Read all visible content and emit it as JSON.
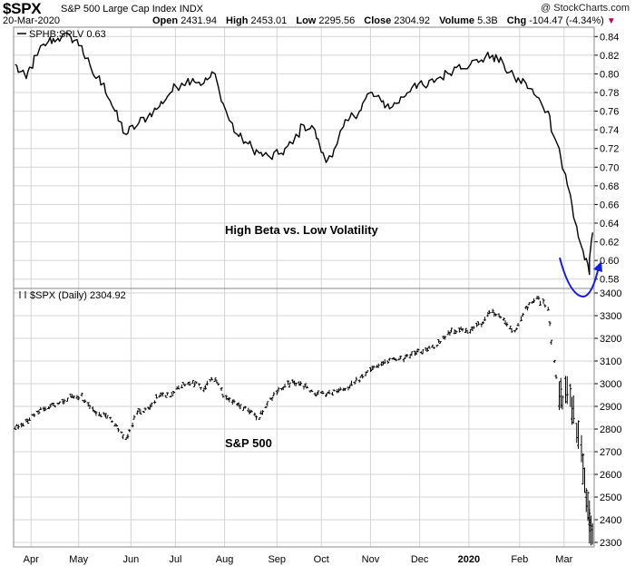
{
  "header": {
    "symbol": "$SPX",
    "name": "S&P 500 Large Cap Index",
    "exchange": "INDX",
    "date": "20-Mar-2020",
    "open_label": "Open",
    "open": "2431.94",
    "high_label": "High",
    "high": "2453.01",
    "low_label": "Low",
    "low": "2295.56",
    "close_label": "Close",
    "close": "2304.92",
    "volume_label": "Volume",
    "volume": "5.3B",
    "chg_label": "Chg",
    "chg": "-104.47 (-4.34%)",
    "chg_arrow": "▼",
    "brand": "@ StockCharts.com"
  },
  "colors": {
    "line": "#000000",
    "grid": "#d4d4d4",
    "annotation": "#1420d8",
    "down_arrow": "#c00060"
  },
  "chart_data": [
    {
      "type": "line",
      "legend": "SPHB:SPLV 0.63",
      "annotation": "High Beta vs. Low Volatility",
      "ylim": [
        0.57,
        0.85
      ],
      "yticks": [
        0.58,
        0.6,
        0.62,
        0.64,
        0.66,
        0.68,
        0.7,
        0.72,
        0.74,
        0.76,
        0.78,
        0.8,
        0.82,
        0.84
      ],
      "y_tick_labels": [
        "0.58",
        "0.60",
        "0.62",
        "0.64",
        "0.66",
        "0.68",
        "0.70",
        "0.72",
        "0.74",
        "0.76",
        "0.78",
        "0.80",
        "0.82",
        "0.84"
      ],
      "grid": true,
      "highlight": "curved arrow under the March low",
      "series": [
        {
          "x": [
            "2019-03-22",
            "2019-03-29",
            "2019-04-05",
            "2019-04-12",
            "2019-04-18",
            "2019-04-26",
            "2019-05-03",
            "2019-05-10",
            "2019-05-17",
            "2019-05-24",
            "2019-05-31",
            "2019-06-07",
            "2019-06-14",
            "2019-06-21",
            "2019-06-28",
            "2019-07-05",
            "2019-07-12",
            "2019-07-19",
            "2019-07-26",
            "2019-08-02",
            "2019-08-09",
            "2019-08-16",
            "2019-08-23",
            "2019-08-30",
            "2019-09-06",
            "2019-09-13",
            "2019-09-20",
            "2019-09-27",
            "2019-10-04",
            "2019-10-11",
            "2019-10-18",
            "2019-10-25",
            "2019-11-01",
            "2019-11-08",
            "2019-11-15",
            "2019-11-22",
            "2019-11-29",
            "2019-12-06",
            "2019-12-13",
            "2019-12-20",
            "2019-12-27",
            "2020-01-03",
            "2020-01-10",
            "2020-01-17",
            "2020-01-24",
            "2020-01-31",
            "2020-02-07",
            "2020-02-14",
            "2020-02-21",
            "2020-02-28",
            "2020-03-06",
            "2020-03-13",
            "2020-03-18",
            "2020-03-20"
          ],
          "values": [
            0.81,
            0.795,
            0.82,
            0.835,
            0.838,
            0.84,
            0.83,
            0.8,
            0.79,
            0.76,
            0.735,
            0.745,
            0.755,
            0.765,
            0.78,
            0.79,
            0.795,
            0.79,
            0.8,
            0.76,
            0.735,
            0.725,
            0.715,
            0.71,
            0.715,
            0.725,
            0.745,
            0.74,
            0.705,
            0.725,
            0.75,
            0.76,
            0.78,
            0.77,
            0.765,
            0.775,
            0.79,
            0.785,
            0.795,
            0.8,
            0.81,
            0.81,
            0.815,
            0.82,
            0.81,
            0.795,
            0.79,
            0.775,
            0.76,
            0.72,
            0.67,
            0.615,
            0.585,
            0.63
          ]
        }
      ]
    },
    {
      "type": "bar",
      "style": "OHLC",
      "legend": "$SPX (Daily) 2304.92",
      "annotation": "S&P 500",
      "ylim": [
        2280,
        3420
      ],
      "yticks": [
        2300,
        2400,
        2500,
        2600,
        2700,
        2800,
        2900,
        3000,
        3100,
        3200,
        3300,
        3400
      ],
      "y_tick_labels": [
        "2300",
        "2400",
        "2500",
        "2600",
        "2700",
        "2800",
        "2900",
        "3000",
        "3100",
        "3200",
        "3300",
        "3400"
      ],
      "grid": true,
      "series": [
        {
          "x": [
            "2019-03-22",
            "2019-03-29",
            "2019-04-05",
            "2019-04-12",
            "2019-04-18",
            "2019-04-26",
            "2019-05-03",
            "2019-05-10",
            "2019-05-17",
            "2019-05-24",
            "2019-05-31",
            "2019-06-07",
            "2019-06-14",
            "2019-06-21",
            "2019-06-28",
            "2019-07-05",
            "2019-07-12",
            "2019-07-19",
            "2019-07-26",
            "2019-08-02",
            "2019-08-09",
            "2019-08-16",
            "2019-08-23",
            "2019-08-30",
            "2019-09-06",
            "2019-09-13",
            "2019-09-20",
            "2019-09-27",
            "2019-10-04",
            "2019-10-11",
            "2019-10-18",
            "2019-10-25",
            "2019-11-01",
            "2019-11-08",
            "2019-11-15",
            "2019-11-22",
            "2019-11-29",
            "2019-12-06",
            "2019-12-13",
            "2019-12-20",
            "2019-12-27",
            "2020-01-03",
            "2020-01-10",
            "2020-01-17",
            "2020-01-24",
            "2020-01-31",
            "2020-02-07",
            "2020-02-14",
            "2020-02-21",
            "2020-02-28",
            "2020-03-06",
            "2020-03-13",
            "2020-03-18",
            "2020-03-20"
          ],
          "values": [
            2810,
            2830,
            2870,
            2900,
            2905,
            2940,
            2945,
            2880,
            2860,
            2825,
            2750,
            2870,
            2890,
            2950,
            2945,
            2990,
            3010,
            2980,
            3025,
            2935,
            2915,
            2885,
            2850,
            2925,
            2980,
            3005,
            2990,
            2960,
            2950,
            2970,
            2985,
            3020,
            3060,
            3090,
            3110,
            3110,
            3140,
            3145,
            3170,
            3220,
            3240,
            3235,
            3265,
            3320,
            3290,
            3225,
            3330,
            3380,
            3340,
            2950,
            2970,
            2710,
            2400,
            2305
          ]
        }
      ]
    }
  ],
  "x_axis": {
    "tick_dates": [
      "2019-04-01",
      "2019-05-01",
      "2019-06-03",
      "2019-07-01",
      "2019-08-01",
      "2019-09-03",
      "2019-10-01",
      "2019-11-01",
      "2019-12-02",
      "2020-01-02",
      "2020-02-03",
      "2020-03-02"
    ],
    "labels": [
      "Apr",
      "May",
      "Jun",
      "Jul",
      "Aug",
      "Sep",
      "Oct",
      "Nov",
      "Dec",
      "2020",
      "Feb",
      "Mar"
    ],
    "bold": [
      false,
      false,
      false,
      false,
      false,
      false,
      false,
      false,
      false,
      true,
      false,
      false
    ]
  }
}
